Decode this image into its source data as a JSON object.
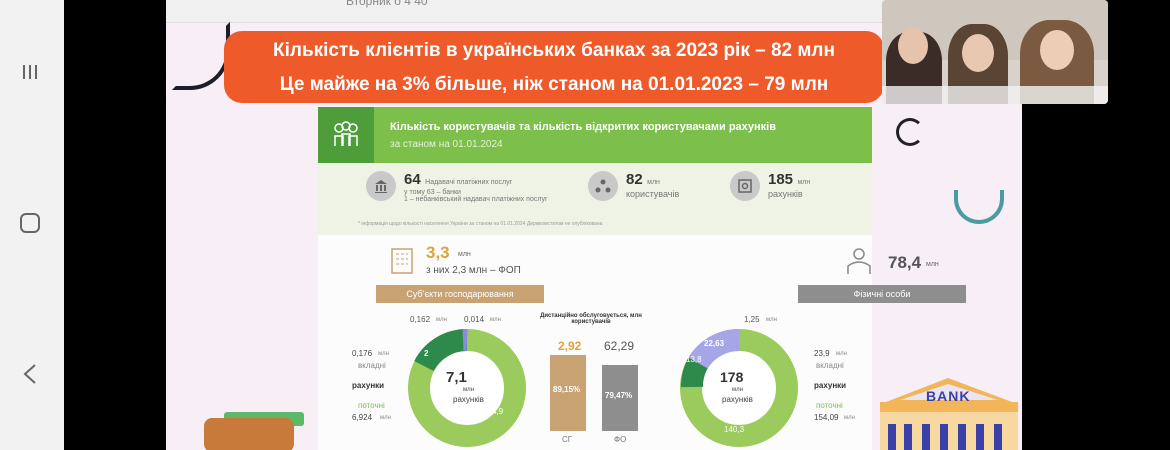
{
  "nav": {
    "recent_icon": "recent-apps-icon",
    "home_icon": "home-icon",
    "back_icon": "back-icon"
  },
  "slide": {
    "top_partial": "Вторник о 4 40",
    "banner": {
      "line1": "Кількість клієнтів в українських банках за 2023 рік – 82 млн",
      "line2": "Це майже на 3% більше, ніж станом на 01.01.2023 – 79 млн"
    },
    "header": {
      "title": "Кількість користувачів та кількість відкритих користувачами рахунків",
      "subtitle": "за станом на 01.01.2024"
    },
    "stats": [
      {
        "value": "64",
        "label": "Надавачі платіжних послуг",
        "sub1": "у тому 63 – банки",
        "sub2": "1 – небанківський надавач платіжних послуг"
      },
      {
        "value": "82",
        "unit": "млн",
        "label": "користувачів"
      },
      {
        "value": "185",
        "unit": "млн",
        "label": "рахунків"
      }
    ],
    "footnote": "* інформація щодо кількості населення України за станом на 01.01.2024 Держкомстатом не опублікована",
    "business": {
      "value": "3,3",
      "unit": "млн",
      "sub": "з них 2,3 млн – ФОП",
      "label": "Суб’єкти господарювання"
    },
    "individuals": {
      "value": "78,4",
      "unit": "млн",
      "label": "Фізичні особи"
    },
    "remote_label": "Дистанційно обслуговується, млн користувачів",
    "left_donut": {
      "center_value": "7,1",
      "center_unit": "млн",
      "center_label": "рахунків",
      "seg_top_a": "0,162",
      "seg_top_b": "0,014",
      "unit": "млн",
      "seg_mid": "2",
      "seg_main": "4,9",
      "deposit_value": "0,176",
      "deposit_unit": "млн",
      "deposit_label": "вкладні",
      "accounts_label": "рахунки",
      "current_label": "поточні",
      "current_value": "6,924",
      "current_unit": "млн"
    },
    "bars": {
      "sg_value": "2,92",
      "sg_pct": "89,15%",
      "sg_label": "СГ",
      "fo_value": "62,29",
      "fo_pct": "79,47%",
      "fo_label": "ФО"
    },
    "right_donut": {
      "center_value": "178",
      "center_unit": "млн",
      "center_label": "рахунків",
      "seg_a": "1,25",
      "seg_b": "22,63",
      "seg_c": "13,8",
      "seg_main": "140,3",
      "unit": "млн",
      "deposit_value": "23,9",
      "deposit_unit": "млн",
      "deposit_label": "вкладні",
      "accounts_label": "рахунки",
      "current_label": "поточні",
      "current_value": "154,09",
      "current_unit": "млн"
    },
    "bank_sign": "BANK"
  },
  "colors": {
    "banner": "#ef5a2a",
    "green": "#7cbf4b",
    "dark_green": "#2e8a4a",
    "label_bar": "#c8a273",
    "gray_bar": "#8e8e8e",
    "purple": "#8a8ae0"
  }
}
